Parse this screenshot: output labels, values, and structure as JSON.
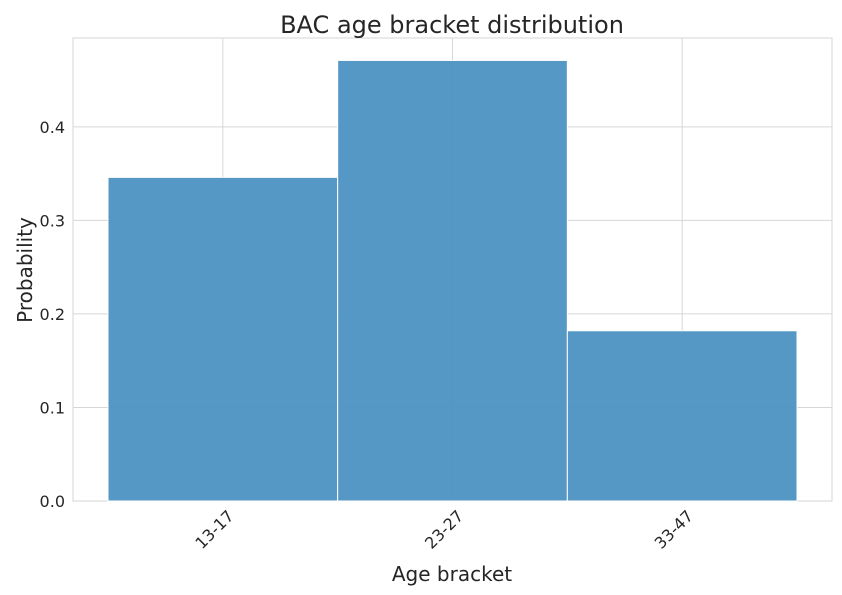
{
  "chart_data": {
    "type": "bar",
    "title": "BAC age bracket distribution",
    "xlabel": "Age bracket",
    "ylabel": "Probability",
    "categories": [
      "13-17",
      "23-27",
      "33-47"
    ],
    "values": [
      0.346,
      0.471,
      0.182
    ],
    "yticks": [
      "0.0",
      "0.1",
      "0.2",
      "0.3",
      "0.4"
    ],
    "ylim": [
      0,
      0.495
    ],
    "grid": true,
    "bar_color": "#4c92c3",
    "grid_color": "#d6d6d6"
  }
}
